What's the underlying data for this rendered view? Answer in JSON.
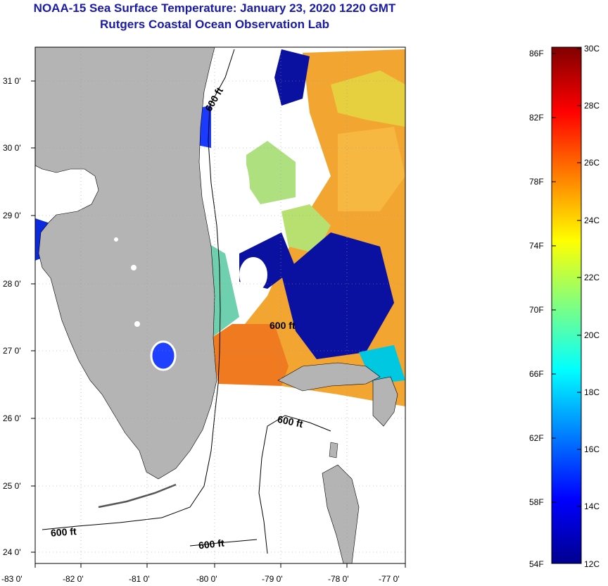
{
  "title": "NOAA-15 Sea Surface Temperature:  January 23, 2020 1220 GMT",
  "subtitle": "Rutgers Coastal Ocean Observation Lab",
  "map": {
    "lon_labels": [
      "-83 0'",
      "-82 0'",
      "-81 0'",
      "-80 0'",
      "-79 0'",
      "-78 0'",
      "-77 0'"
    ],
    "lat_labels": [
      "31 0'",
      "30 0'",
      "29 0'",
      "28 0'",
      "27 0'",
      "26 0'",
      "25 0'",
      "24 0'"
    ],
    "contour_labels": [
      "600 ft",
      "600 ft",
      "600 ft",
      "600 ft",
      "600 ft"
    ],
    "land_color": "#b4b4b4"
  },
  "colorbar": {
    "f_labels": [
      "86F",
      "82F",
      "78F",
      "74F",
      "70F",
      "66F",
      "62F",
      "58F",
      "54F"
    ],
    "c_labels": [
      "30C",
      "28C",
      "26C",
      "24C",
      "22C",
      "20C",
      "18C",
      "16C",
      "14C",
      "12C"
    ]
  }
}
